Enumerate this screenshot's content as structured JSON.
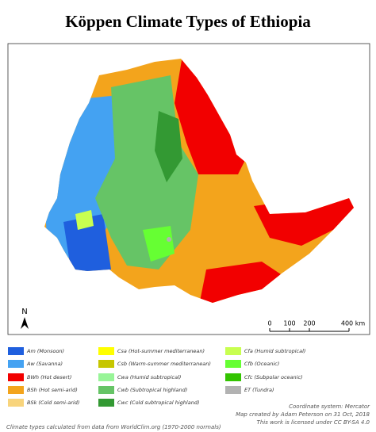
{
  "header": {
    "title": "Köppen Climate Types of Ethiopia"
  },
  "map": {
    "north_label": "N",
    "scale_labels": [
      "0",
      "100",
      "200",
      "400 km"
    ]
  },
  "legend": [
    {
      "label": "Am (Monsoon)",
      "color": "#1f5fde"
    },
    {
      "label": "Aw (Savanna)",
      "color": "#44a2f2"
    },
    {
      "label": "BWh (Hot desert)",
      "color": "#f20000"
    },
    {
      "label": "BSh (Hot semi-arid)",
      "color": "#f3a41c"
    },
    {
      "label": "BSk (Cold semi-arid)",
      "color": "#f8d47c"
    },
    {
      "label": "Csa (Hot-summer mediterranean)",
      "color": "#ffff00"
    },
    {
      "label": "Csb (Warm-summer mediterranean)",
      "color": "#c6c600"
    },
    {
      "label": "Cwa (Humid subtropical)",
      "color": "#98f598"
    },
    {
      "label": "Cwb (Subtropical highland)",
      "color": "#66c466"
    },
    {
      "label": "Cwc (Cold subtropical highland)",
      "color": "#339933"
    },
    {
      "label": "Cfa (Humid subtropical)",
      "color": "#c8ff50"
    },
    {
      "label": "Cfb (Oceanic)",
      "color": "#66ff33"
    },
    {
      "label": "Cfc (Subpolar oceanic)",
      "color": "#33c400"
    },
    {
      "label": "ET (Tundra)",
      "color": "#b2b2b2"
    }
  ],
  "credits": [
    "Coordinate system: Mercator",
    "Map created by Adam Peterson on 31 Oct, 2018",
    "This work is licensed under CC BY-SA 4.0"
  ],
  "source": "Climate types calculated from data from WorldClim.org (1970-2000 normals)"
}
